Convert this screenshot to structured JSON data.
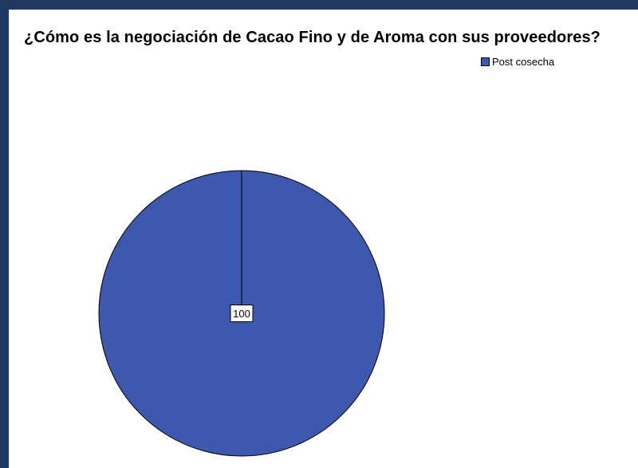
{
  "chart_data": {
    "type": "pie",
    "title": "¿Cómo es la negociación de Cacao Fino y de Aroma con sus proveedores?",
    "categories": [
      "Post cosecha"
    ],
    "values": [
      100
    ],
    "data_labels": [
      "100"
    ],
    "colors": [
      "#3e58ad"
    ],
    "legend_position": "top-right"
  },
  "colors": {
    "frame": "#1f3864",
    "slice": "#3e58ad",
    "outline": "#000000"
  }
}
